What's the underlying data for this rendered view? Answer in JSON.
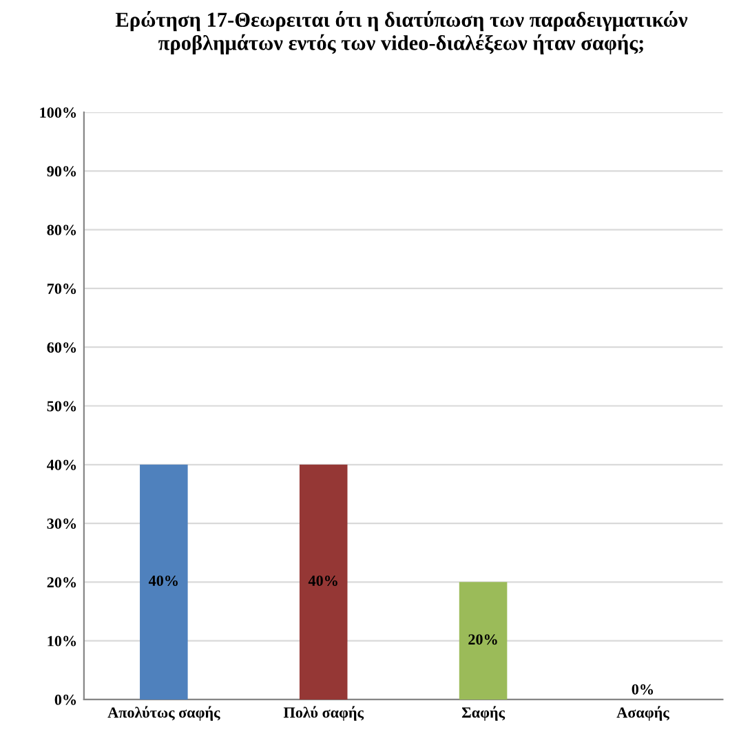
{
  "chart_data": {
    "type": "bar",
    "title": "Ερώτηση 17-Θεωρειται ότι η διατύπωση των παραδειγματικών προβλημάτων εντός των video-διαλέξεων ήταν σαφής;",
    "categories": [
      "Απολύτως σαφής",
      "Πολύ σαφής",
      "Σαφής",
      "Ασαφής"
    ],
    "values": [
      40,
      40,
      20,
      0
    ],
    "colors": [
      "#4f81bd",
      "#953735",
      "#9bbb59",
      "#8064a2"
    ],
    "value_labels": [
      "40%",
      "40%",
      "20%",
      "0%"
    ],
    "ylim": [
      0,
      100
    ],
    "yticks": [
      {
        "value": 0,
        "label": "0%"
      },
      {
        "value": 10,
        "label": "10%"
      },
      {
        "value": 20,
        "label": "20%"
      },
      {
        "value": 30,
        "label": "30%"
      },
      {
        "value": 40,
        "label": "40%"
      },
      {
        "value": 50,
        "label": "50%"
      },
      {
        "value": 60,
        "label": "60%"
      },
      {
        "value": 70,
        "label": "70%"
      },
      {
        "value": 80,
        "label": "80%"
      },
      {
        "value": 90,
        "label": "90%"
      },
      {
        "value": 100,
        "label": "100%"
      }
    ],
    "grid": "y"
  }
}
